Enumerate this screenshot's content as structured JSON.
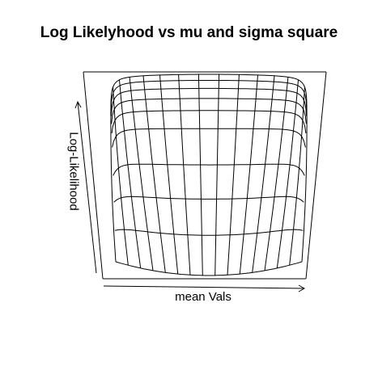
{
  "chart_data": {
    "type": "surface",
    "title": "Log Likelyhood vs mu and sigma square",
    "xlabel": "mean Vals",
    "ylabel": "Log-Likelihood",
    "grid": false,
    "legend": "none"
  }
}
